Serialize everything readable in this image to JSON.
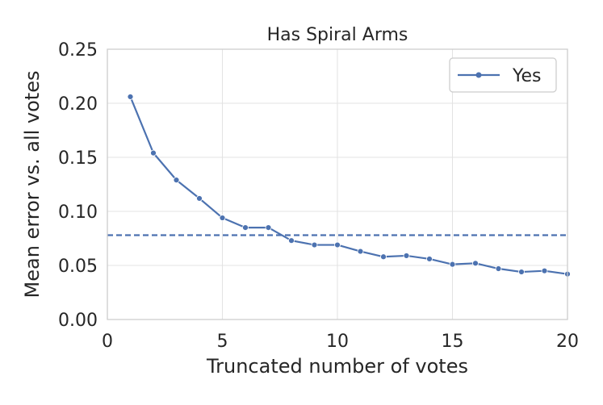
{
  "chart_data": {
    "type": "line",
    "title": "Has Spiral Arms",
    "xlabel": "Truncated number of votes",
    "ylabel": "Mean error vs. all votes",
    "xlim": [
      0,
      20
    ],
    "ylim": [
      0.0,
      0.25
    ],
    "xticks": [
      "0",
      "5",
      "10",
      "15",
      "20"
    ],
    "yticks": [
      "0.00",
      "0.05",
      "0.10",
      "0.15",
      "0.20",
      "0.25"
    ],
    "grid": true,
    "legend_position": "top-right",
    "series": [
      {
        "name": "Yes",
        "color": "#4c72b0",
        "marker": "circle",
        "x": [
          1,
          2,
          3,
          4,
          5,
          6,
          7,
          8,
          9,
          10,
          11,
          12,
          13,
          14,
          15,
          16,
          17,
          18,
          19,
          20
        ],
        "y": [
          0.206,
          0.154,
          0.129,
          0.112,
          0.094,
          0.085,
          0.085,
          0.073,
          0.069,
          0.069,
          0.063,
          0.058,
          0.059,
          0.056,
          0.051,
          0.052,
          0.047,
          0.044,
          0.045,
          0.042
        ]
      }
    ],
    "reference_lines": [
      {
        "orientation": "horizontal",
        "y": 0.078,
        "style": "dashed",
        "color": "#4c72b0"
      }
    ]
  }
}
